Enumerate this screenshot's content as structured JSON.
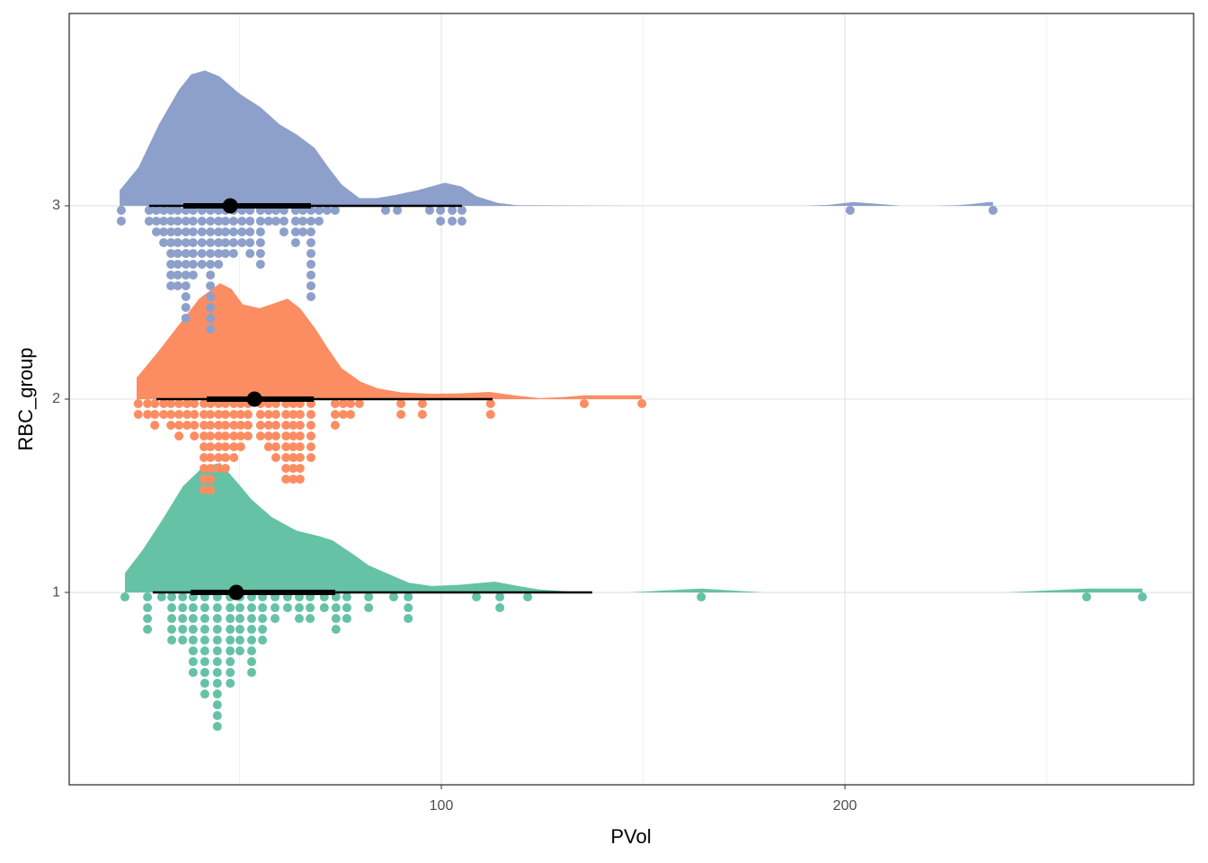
{
  "chart_data": {
    "type": "raincloud",
    "xlabel": "PVol",
    "ylabel": "RBC_group",
    "xlim": [
      7.8,
      286.4
    ],
    "xticks": [
      100,
      200
    ],
    "x_minor_ticks": [
      50,
      150,
      250
    ],
    "ylim": [
      0.005,
      3.995
    ],
    "yticks": [
      1,
      2,
      3
    ],
    "grid": true,
    "series": [
      {
        "y": 1,
        "color": "#66c2a5",
        "density": {
          "x": [
            21.6,
            26,
            30.7,
            36,
            41,
            45.2,
            49,
            53,
            58,
            64.1,
            70,
            73,
            78,
            82,
            86.4,
            92,
            97.6,
            105,
            113.2,
            120,
            124.3,
            135.4,
            146.5,
            155,
            164.4,
            172,
            180,
            240,
            250,
            260,
            273.7
          ],
          "h": [
            0.1,
            0.22,
            0.37,
            0.55,
            0.65,
            0.67,
            0.58,
            0.48,
            0.39,
            0.32,
            0.29,
            0.27,
            0.2,
            0.14,
            0.1,
            0.05,
            0.033,
            0.04,
            0.056,
            0.03,
            0.015,
            0,
            0,
            0.01,
            0.02,
            0.01,
            0,
            0,
            0.01,
            0.02,
            0.02
          ]
        },
        "dots": {
          "x": [
            21.6,
            27.2,
            30.7,
            33.2,
            35.9,
            38.5,
            41.4,
            44.5,
            47.7,
            50.1,
            53.0,
            55.7,
            58.8,
            61.9,
            64.8,
            67.5,
            71.0,
            73.9,
            76.6,
            82.0,
            88.2,
            91.8,
            108.7,
            114.5,
            121.4,
            164.4,
            259.9,
            273.7
          ],
          "counts": [
            1,
            4,
            1,
            5,
            5,
            8,
            10,
            13,
            9,
            6,
            8,
            5,
            3,
            2,
            3,
            3,
            2,
            4,
            3,
            2,
            1,
            3,
            1,
            2,
            1,
            1,
            1,
            1
          ]
        },
        "interval": {
          "median": 49.2,
          "inner": [
            37.9,
            73.7
          ],
          "outer": [
            28.5,
            137.4
          ]
        }
      },
      {
        "y": 2,
        "color": "#fc8d62",
        "density": {
          "x": [
            24.5,
            30,
            35.2,
            40,
            45.2,
            48,
            50.8,
            55,
            61.9,
            65,
            68.6,
            72,
            75.3,
            80,
            84.2,
            90,
            97.6,
            105,
            112,
            118,
            124.3,
            130,
            135.4,
            142,
            149.7
          ],
          "h": [
            0.11,
            0.25,
            0.39,
            0.52,
            0.6,
            0.57,
            0.49,
            0.47,
            0.52,
            0.47,
            0.37,
            0.26,
            0.16,
            0.09,
            0.056,
            0.035,
            0.028,
            0.03,
            0.037,
            0.02,
            0.005,
            0.01,
            0.02,
            0.02,
            0.02
          ]
        },
        "dots": {
          "x": [
            24.9,
            27.2,
            29.0,
            31.2,
            33.0,
            35.0,
            37.0,
            38.8,
            41.2,
            42.8,
            44.8,
            46.5,
            48.6,
            50.3,
            52.1,
            55.2,
            57.2,
            59.0,
            61.5,
            63.3,
            65.0,
            67.7,
            73.7,
            75.7,
            77.5,
            79.7,
            90.0,
            95.3,
            112.2,
            135.4,
            149.7
          ],
          "counts": [
            2,
            2,
            3,
            2,
            3,
            4,
            3,
            4,
            9,
            9,
            7,
            7,
            6,
            5,
            4,
            4,
            5,
            6,
            8,
            8,
            8,
            6,
            3,
            2,
            2,
            1,
            2,
            2,
            2,
            1,
            1
          ]
        },
        "interval": {
          "median": 53.7,
          "inner": [
            41.9,
            68.4
          ],
          "outer": [
            29.4,
            112.7
          ]
        }
      },
      {
        "y": 3,
        "color": "#8da0cb",
        "density": {
          "x": [
            20.3,
            25,
            30,
            35,
            38,
            41.4,
            45,
            50,
            55.2,
            60,
            64.1,
            68.6,
            72,
            75.3,
            79.7,
            84,
            88.6,
            94,
            100.9,
            105,
            108.7,
            114,
            118.7,
            150,
            190,
            196,
            202.2,
            208,
            214,
            222,
            228,
            232,
            235.6,
            236.7
          ],
          "h": [
            0.08,
            0.2,
            0.42,
            0.6,
            0.68,
            0.7,
            0.67,
            0.58,
            0.51,
            0.42,
            0.37,
            0.3,
            0.2,
            0.11,
            0.04,
            0.04,
            0.056,
            0.08,
            0.12,
            0.1,
            0.05,
            0.015,
            0.003,
            0,
            0,
            0.005,
            0.02,
            0.01,
            0,
            0,
            0.003,
            0.01,
            0.02,
            0.02
          ]
        },
        "dots": {
          "x": [
            20.7,
            27.6,
            29.4,
            31.2,
            33.0,
            34.7,
            36.7,
            38.5,
            40.7,
            42.8,
            44.8,
            46.5,
            48.5,
            50.6,
            52.6,
            55.2,
            57.2,
            59.0,
            61.0,
            63.9,
            65.7,
            67.7,
            69.7,
            71.7,
            73.7,
            86.2,
            89.1,
            97.1,
            99.8,
            102.7,
            105.1,
            201.3,
            236.7
          ],
          "counts": [
            2,
            2,
            3,
            4,
            8,
            8,
            11,
            7,
            6,
            12,
            6,
            5,
            5,
            4,
            5,
            6,
            2,
            2,
            3,
            4,
            3,
            9,
            2,
            1,
            1,
            1,
            1,
            1,
            2,
            2,
            2,
            1,
            1
          ]
        },
        "interval": {
          "median": 47.7,
          "inner": [
            36.1,
            67.7
          ],
          "outer": [
            27.6,
            105.1
          ]
        }
      }
    ]
  }
}
